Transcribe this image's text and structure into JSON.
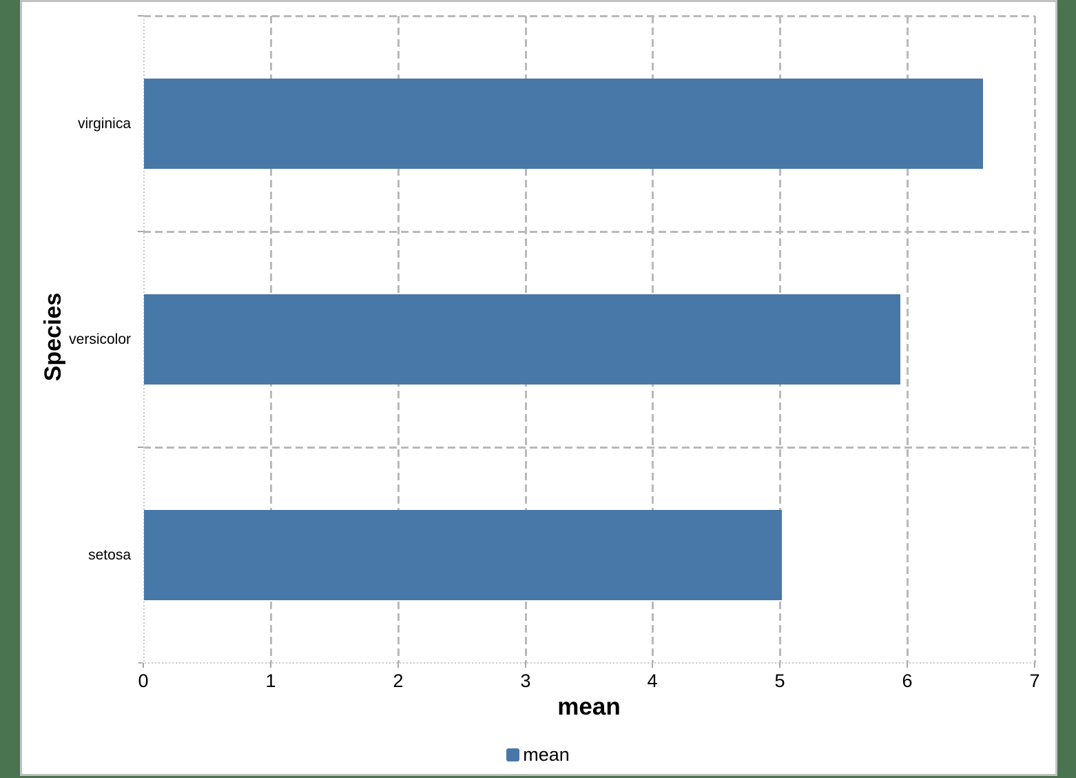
{
  "colors": {
    "page_background": "#4A7350",
    "panel_background": "#FFFFFF",
    "panel_border": "#C2C2C2",
    "bar_fill": "#4778A8",
    "gridline": "#B9B9B9",
    "axis_line": "#C8C8C8",
    "tick_mark": "#A6A6A6",
    "text": "#000000"
  },
  "chart_data": {
    "type": "bar",
    "orientation": "horizontal",
    "title": "",
    "xlabel": "mean",
    "ylabel": "Species",
    "categories_top_to_bottom": [
      "virginica",
      "versicolor",
      "setosa"
    ],
    "series": [
      {
        "name": "mean",
        "values": [
          6.59,
          5.94,
          5.01
        ]
      }
    ],
    "xlim": [
      0,
      7
    ],
    "x_ticks": [
      0,
      1,
      2,
      3,
      4,
      5,
      6,
      7
    ],
    "grid": "dashed",
    "legend": {
      "position": "bottom",
      "entries": [
        "mean"
      ]
    }
  }
}
